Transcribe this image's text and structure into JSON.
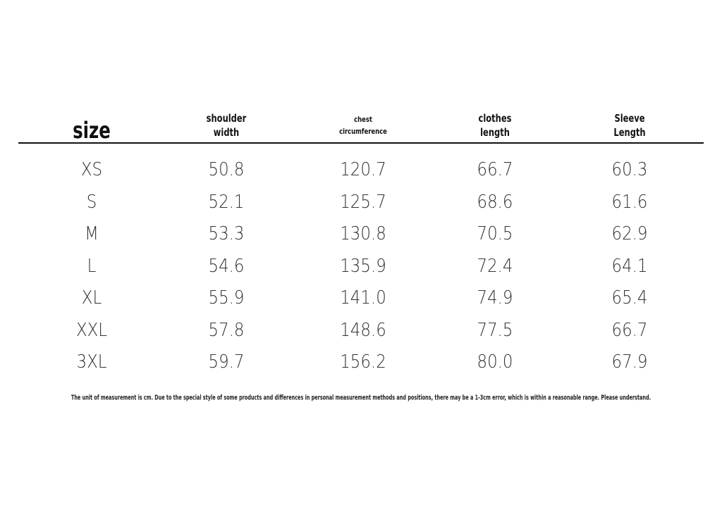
{
  "table": {
    "headers": [
      [
        "size"
      ],
      [
        "shoulder",
        "width"
      ],
      [
        "chest",
        "circumference"
      ],
      [
        "clothes",
        "length"
      ],
      [
        "Sleeve",
        "Length"
      ]
    ],
    "rows": [
      [
        "XS",
        "50.8",
        "120.7",
        "66.7",
        "60.3"
      ],
      [
        "S",
        "52.1",
        "125.7",
        "68.6",
        "61.6"
      ],
      [
        "M",
        "53.3",
        "130.8",
        "70.5",
        "62.9"
      ],
      [
        "L",
        "54.6",
        "135.9",
        "72.4",
        "64.1"
      ],
      [
        "XL",
        "55.9",
        "141.0",
        "74.9",
        "65.4"
      ],
      [
        "XXL",
        "57.8",
        "148.6",
        "77.5",
        "66.7"
      ],
      [
        "3XL",
        "59.7",
        "156.2",
        "80.0",
        "67.9"
      ]
    ],
    "note": "The unit of measurement is cm. Due to the special style of some products and differences in personal measurement methods and positions, there may be a 1-3cm error, which is within a reasonable range. Please understand."
  }
}
